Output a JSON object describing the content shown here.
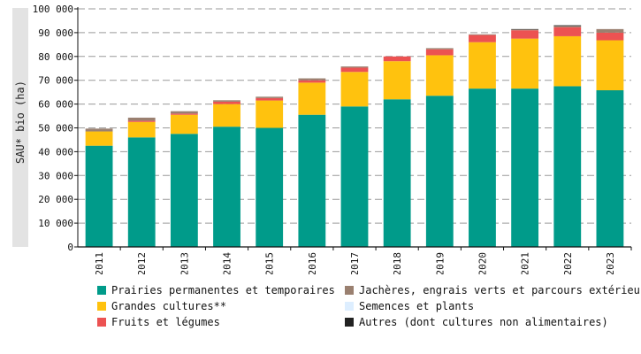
{
  "chart_data": {
    "type": "bar",
    "stacked": true,
    "ylabel": "SAU* bio (ha)",
    "xlabel": "",
    "ylim": [
      0,
      100000
    ],
    "yticks": [
      "0",
      "10 000",
      "20 000",
      "30 000",
      "40 000",
      "50 000",
      "60 000",
      "70 000",
      "80 000",
      "90 000",
      "100 000"
    ],
    "ytick_values": [
      0,
      10000,
      20000,
      30000,
      40000,
      50000,
      60000,
      70000,
      80000,
      90000,
      100000
    ],
    "grid": "horizontal dashed",
    "legend_position": "bottom",
    "categories": [
      "2011",
      "2012",
      "2013",
      "2014",
      "2015",
      "2016",
      "2017",
      "2018",
      "2019",
      "2020",
      "2021",
      "2022",
      "2023"
    ],
    "series": [
      {
        "name": "Prairies permanentes et temporaires",
        "color": "#009b8a",
        "values": [
          42500,
          46000,
          47500,
          50500,
          50000,
          55500,
          59000,
          62000,
          63500,
          66500,
          66500,
          67500,
          65800
        ]
      },
      {
        "name": "Grandes cultures**",
        "color": "#ffc20e",
        "values": [
          6000,
          6500,
          8000,
          9500,
          11500,
          13500,
          14500,
          16000,
          17000,
          19500,
          21000,
          21000,
          21000
        ]
      },
      {
        "name": "Fruits et légumes",
        "color": "#ec5252",
        "values": [
          0,
          500,
          500,
          1000,
          1000,
          1000,
          1800,
          2000,
          2500,
          3000,
          3500,
          3800,
          3200
        ]
      },
      {
        "name": "Jachères, engrais verts et parcours extérieurs",
        "color": "#9a8070",
        "values": [
          1200,
          1300,
          1000,
          600,
          600,
          800,
          500,
          0,
          500,
          300,
          300,
          500,
          1500
        ]
      },
      {
        "name": "Semences et plants",
        "color": "#ddeeff",
        "values": [
          0,
          0,
          0,
          0,
          0,
          0,
          0,
          0,
          0,
          0,
          0,
          0,
          0
        ]
      },
      {
        "name": "Autres (dont cultures non alimentaires)",
        "color": "#222222",
        "values": [
          0,
          0,
          0,
          0,
          0,
          0,
          0,
          0,
          0,
          0,
          200,
          300,
          0
        ]
      }
    ]
  }
}
